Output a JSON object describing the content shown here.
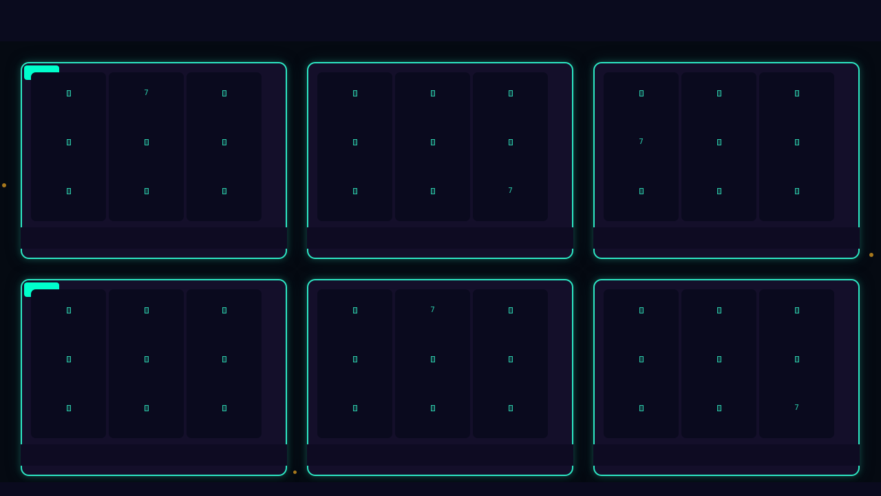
{
  "colors": {
    "accent": "#2de8c4",
    "badge": "#00ffcc",
    "card_bg": "#140f2a",
    "background": "#050a12"
  },
  "cards": [
    {
      "badge": true,
      "cells": [
        [
          "",
          "7",
          ""
        ],
        [
          "",
          "",
          ""
        ],
        [
          "",
          "",
          ""
        ]
      ]
    },
    {
      "badge": false,
      "cells": [
        [
          "",
          "",
          ""
        ],
        [
          "",
          "",
          ""
        ],
        [
          "",
          "",
          "7"
        ]
      ]
    },
    {
      "badge": false,
      "cells": [
        [
          "",
          "",
          ""
        ],
        [
          "7",
          "",
          ""
        ],
        [
          "",
          "",
          ""
        ]
      ]
    },
    {
      "badge": true,
      "cells": [
        [
          "",
          "",
          ""
        ],
        [
          "",
          "",
          ""
        ],
        [
          "",
          "",
          ""
        ]
      ]
    },
    {
      "badge": false,
      "cells": [
        [
          "",
          "7",
          ""
        ],
        [
          "",
          "",
          ""
        ],
        [
          "",
          "",
          ""
        ]
      ]
    },
    {
      "badge": false,
      "cells": [
        [
          "",
          "",
          ""
        ],
        [
          "",
          "",
          ""
        ],
        [
          "",
          "",
          "7"
        ]
      ]
    }
  ]
}
